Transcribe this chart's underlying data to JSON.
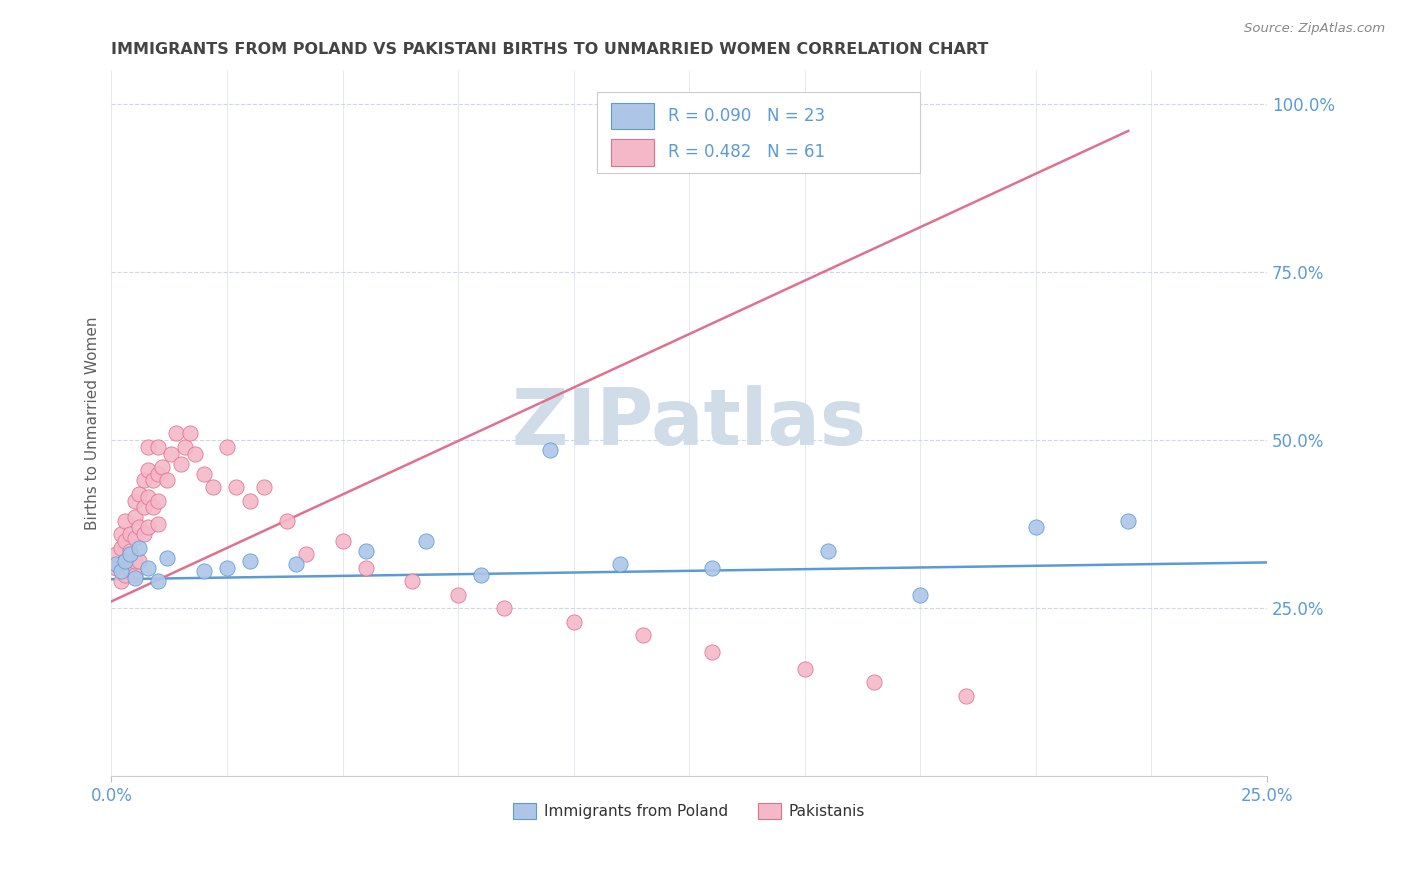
{
  "title": "IMMIGRANTS FROM POLAND VS PAKISTANI BIRTHS TO UNMARRIED WOMEN CORRELATION CHART",
  "source": "Source: ZipAtlas.com",
  "ylabel": "Births to Unmarried Women",
  "legend_blue_label": "Immigrants from Poland",
  "legend_pink_label": "Pakistanis",
  "legend_blue_r": "R = 0.090",
  "legend_blue_n": "N = 23",
  "legend_pink_r": "R = 0.482",
  "legend_pink_n": "N = 61",
  "blue_scatter_x": [
    0.001,
    0.002,
    0.003,
    0.004,
    0.005,
    0.006,
    0.008,
    0.01,
    0.012,
    0.02,
    0.025,
    0.03,
    0.04,
    0.055,
    0.068,
    0.08,
    0.095,
    0.11,
    0.13,
    0.155,
    0.175,
    0.2,
    0.22
  ],
  "blue_scatter_y": [
    0.315,
    0.305,
    0.32,
    0.33,
    0.295,
    0.34,
    0.31,
    0.29,
    0.325,
    0.305,
    0.31,
    0.32,
    0.315,
    0.335,
    0.35,
    0.3,
    0.485,
    0.315,
    0.31,
    0.335,
    0.27,
    0.37,
    0.38
  ],
  "pink_scatter_x": [
    0.001,
    0.001,
    0.002,
    0.002,
    0.002,
    0.002,
    0.003,
    0.003,
    0.003,
    0.003,
    0.004,
    0.004,
    0.004,
    0.005,
    0.005,
    0.005,
    0.005,
    0.005,
    0.006,
    0.006,
    0.006,
    0.007,
    0.007,
    0.007,
    0.008,
    0.008,
    0.008,
    0.008,
    0.009,
    0.009,
    0.01,
    0.01,
    0.01,
    0.01,
    0.011,
    0.012,
    0.013,
    0.014,
    0.015,
    0.016,
    0.017,
    0.018,
    0.02,
    0.022,
    0.025,
    0.027,
    0.03,
    0.033,
    0.038,
    0.042,
    0.05,
    0.055,
    0.065,
    0.075,
    0.085,
    0.1,
    0.115,
    0.13,
    0.15,
    0.165,
    0.185
  ],
  "pink_scatter_y": [
    0.31,
    0.33,
    0.29,
    0.31,
    0.34,
    0.36,
    0.3,
    0.32,
    0.35,
    0.38,
    0.31,
    0.335,
    0.36,
    0.3,
    0.32,
    0.355,
    0.385,
    0.41,
    0.32,
    0.37,
    0.42,
    0.36,
    0.4,
    0.44,
    0.37,
    0.415,
    0.455,
    0.49,
    0.4,
    0.44,
    0.375,
    0.41,
    0.45,
    0.49,
    0.46,
    0.44,
    0.48,
    0.51,
    0.465,
    0.49,
    0.51,
    0.48,
    0.45,
    0.43,
    0.49,
    0.43,
    0.41,
    0.43,
    0.38,
    0.33,
    0.35,
    0.31,
    0.29,
    0.27,
    0.25,
    0.23,
    0.21,
    0.185,
    0.16,
    0.14,
    0.12
  ],
  "blue_trend_x": [
    0.0,
    0.25
  ],
  "blue_trend_y": [
    0.293,
    0.318
  ],
  "pink_trend_x": [
    0.0,
    0.22
  ],
  "pink_trend_y": [
    0.26,
    0.96
  ],
  "watermark_text": "ZIPatlas",
  "blue_fill_color": "#adc6e8",
  "blue_edge_color": "#5b9bd5",
  "pink_fill_color": "#f5b8c8",
  "pink_edge_color": "#e07090",
  "blue_line_color": "#5b9bd5",
  "pink_line_color": "#e07090",
  "axis_color": "#5b9bd5",
  "grid_color": "#d0d8e8",
  "title_color": "#444444",
  "source_color": "#888888",
  "ylabel_color": "#606060",
  "watermark_color": "#d0dce8",
  "xlim": [
    0.0,
    0.25
  ],
  "ylim": [
    0.0,
    1.05
  ],
  "ytick_vals": [
    0.25,
    0.5,
    0.75,
    1.0
  ],
  "ytick_labels": [
    "25.0%",
    "50.0%",
    "75.0%",
    "100.0%"
  ]
}
